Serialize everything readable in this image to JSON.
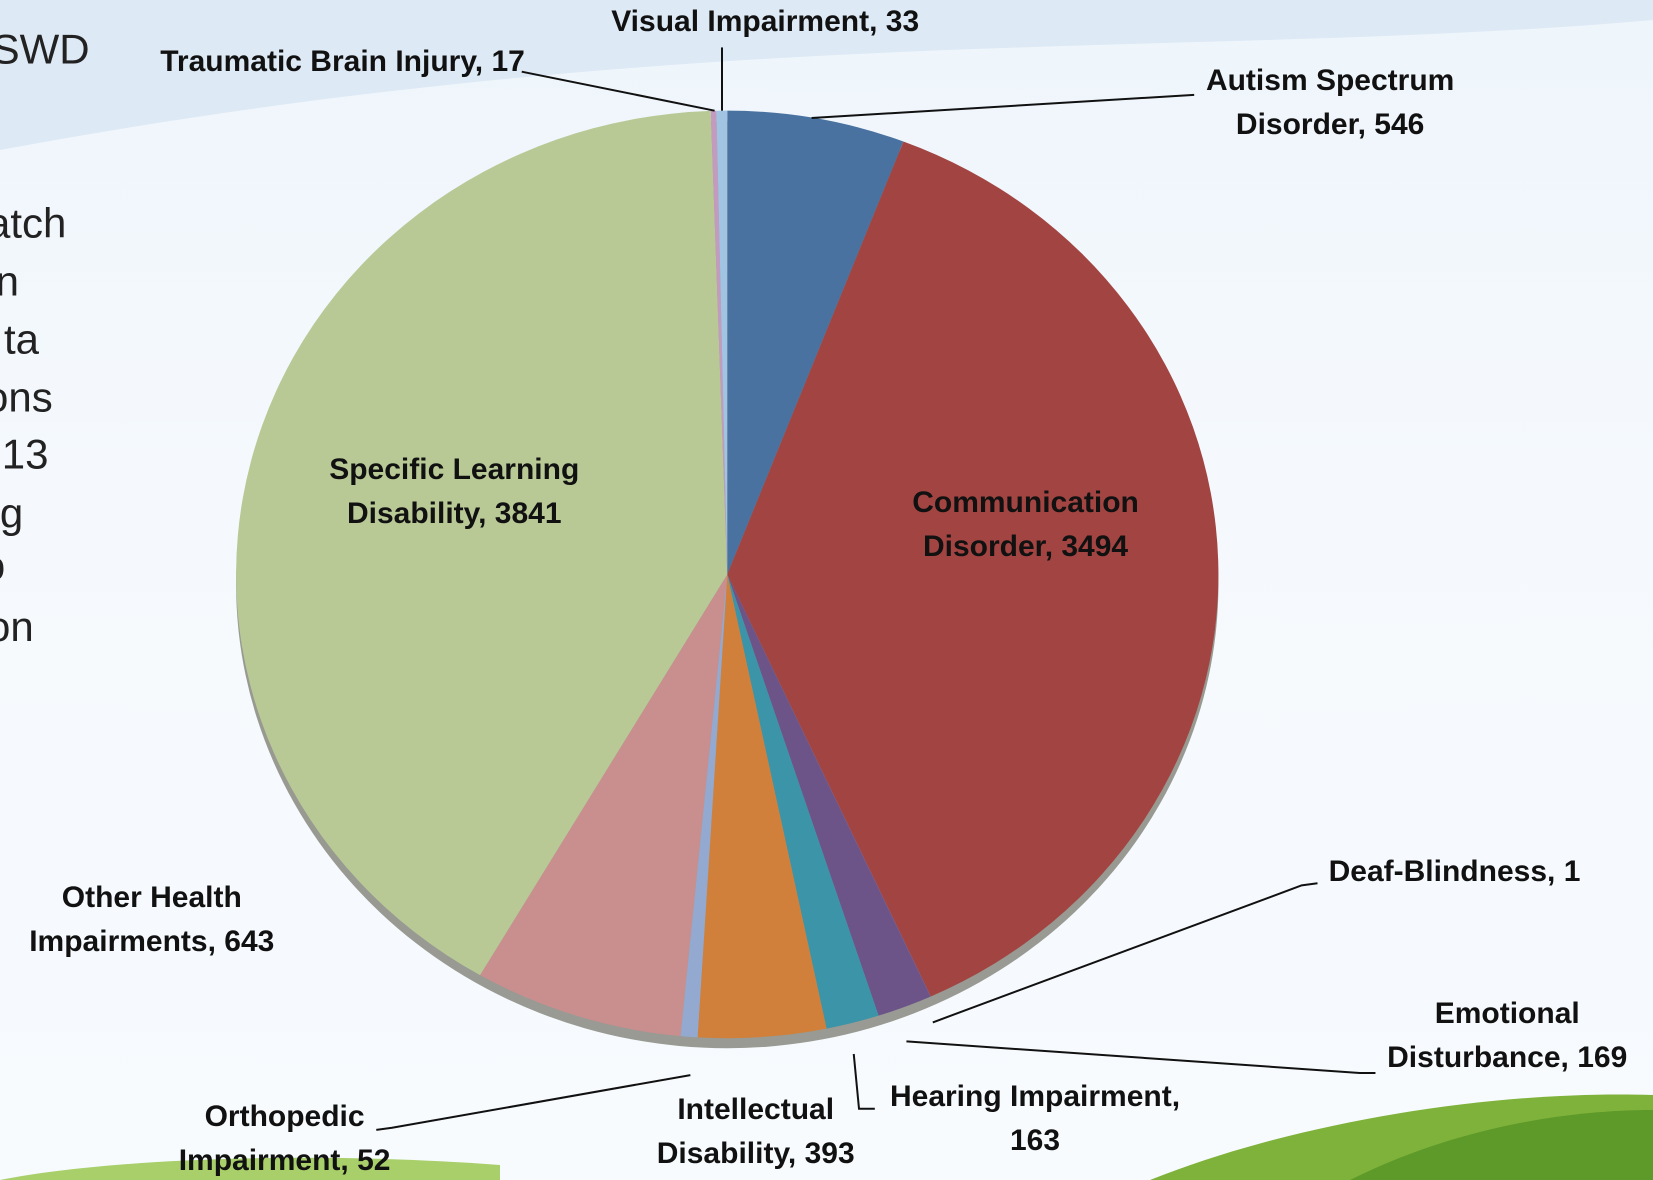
{
  "chart_data": {
    "type": "pie",
    "categories": [
      "Autism Spectrum Disorder",
      "Communication Disorder",
      "Deaf-Blindness",
      "Emotional Disturbance",
      "Hearing Impairment",
      "Intellectual Disability",
      "Orthopedic Impairment",
      "Other Health Impairments",
      "Specific Learning Disability",
      "Traumatic Brain Injury",
      "Visual Impairment"
    ],
    "values": [
      546,
      3494,
      1,
      169,
      163,
      393,
      52,
      643,
      3841,
      17,
      33
    ],
    "colors": [
      "#4a72a0",
      "#a24542",
      "#7b4a9a",
      "#6c5489",
      "#3c94a8",
      "#d0803a",
      "#93a9cf",
      "#c98e8e",
      "#b8c996",
      "#c39bbf",
      "#a0c4e2"
    ]
  },
  "side_text": [
    "SWD",
    "atch",
    "n",
    "ta",
    "ons",
    "13",
    "g",
    "o",
    "on"
  ]
}
